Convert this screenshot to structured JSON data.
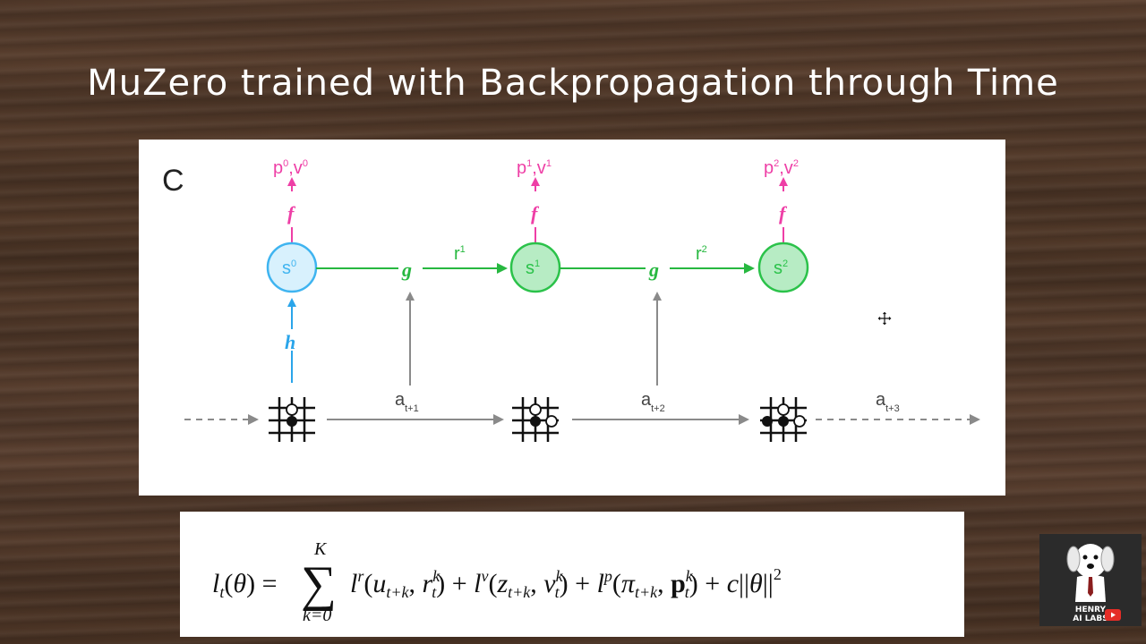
{
  "slide": {
    "title": "MuZero trained with Backpropagation through Time"
  },
  "diagram": {
    "panel_label": "C",
    "states": [
      {
        "label": "s",
        "sup": "0",
        "color": "#3fb4f0"
      },
      {
        "label": "s",
        "sup": "1",
        "color": "#2bc24a"
      },
      {
        "label": "s",
        "sup": "2",
        "color": "#2bc24a"
      }
    ],
    "outputs": [
      {
        "base": "p",
        "sup1": "0",
        "sep": ",v",
        "sup2": "0"
      },
      {
        "base": "p",
        "sup1": "1",
        "sep": ",v",
        "sup2": "1"
      },
      {
        "base": "p",
        "sup1": "2",
        "sep": ",v",
        "sup2": "2"
      }
    ],
    "functions": {
      "prediction": "f",
      "dynamics": "g",
      "representation": "h"
    },
    "rewards": [
      {
        "base": "r",
        "sup": "1"
      },
      {
        "base": "r",
        "sup": "2"
      }
    ],
    "actions": [
      {
        "base": "a",
        "sub": "t+1"
      },
      {
        "base": "a",
        "sub": "t+2"
      },
      {
        "base": "a",
        "sub": "t+3"
      }
    ],
    "colors": {
      "prediction": "#ee3fa6",
      "representation": "#2aa5ea",
      "dynamics": "#27b840",
      "state_blue_fill": "#d8f1fd",
      "state_green_fill": "#b7ecc4",
      "action_arrow": "#808080"
    }
  },
  "formula": {
    "text": "l_t(θ) = Σ_{k=0}^{K} l^r(u_{t+k}, r_t^k) + l^v(z_{t+k}, v_t^k) + l^p(π_{t+k}, p_t^k) + c||θ||^2",
    "upper_limit": "K",
    "lower_limit": "k=0"
  },
  "logo": {
    "text_line1": "HENRY",
    "text_line2": "AI LABS",
    "icon": "dog-mascot-icon"
  },
  "cursor": {
    "icon": "move-cursor-icon"
  }
}
